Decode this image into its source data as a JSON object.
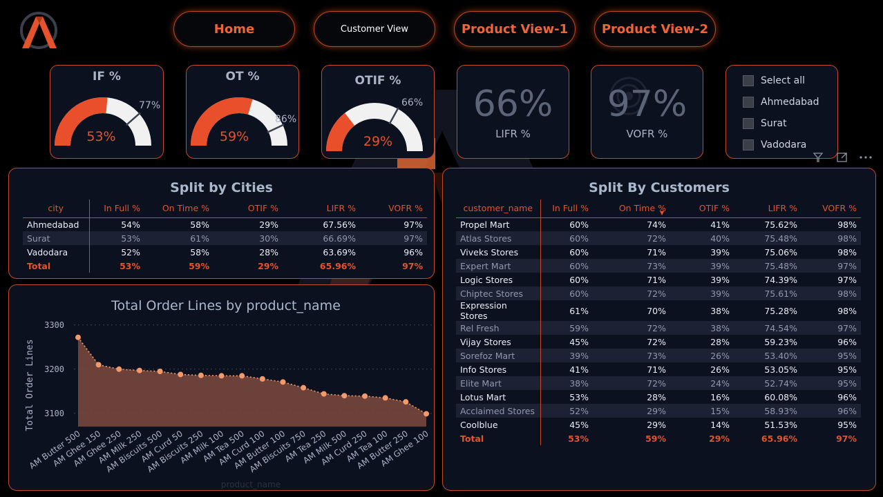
{
  "nav": {
    "home": "Home",
    "customer_view": "Customer View",
    "product_view_1": "Product View-1",
    "product_view_2": "Product View-2"
  },
  "gauges": [
    {
      "title": "IF %",
      "value": "53%",
      "target": "77%",
      "fraction": 0.53,
      "target_fraction": 0.77
    },
    {
      "title": "OT %",
      "value": "59%",
      "target": "86%",
      "fraction": 0.59,
      "target_fraction": 0.86
    },
    {
      "title": "OTIF %",
      "value": "29%",
      "target": "66%",
      "fraction": 0.29,
      "target_fraction": 0.66
    }
  ],
  "kpis": [
    {
      "value": "66%",
      "label": "LIFR %"
    },
    {
      "value": "97%",
      "label": "VOFR %"
    }
  ],
  "slicer": {
    "items": [
      "Select all",
      "Ahmedabad",
      "Surat",
      "Vadodara"
    ]
  },
  "cities_table": {
    "title": "Split by Cities",
    "headers": [
      "city",
      "In Full %",
      "On Time %",
      "OTIF %",
      "LIFR %",
      "VOFR %"
    ],
    "rows": [
      [
        "Ahmedabad",
        "54%",
        "58%",
        "29%",
        "67.56%",
        "97%"
      ],
      [
        "Surat",
        "53%",
        "61%",
        "30%",
        "66.69%",
        "97%"
      ],
      [
        "Vadodara",
        "52%",
        "58%",
        "28%",
        "63.69%",
        "96%"
      ]
    ],
    "total": [
      "Total",
      "53%",
      "59%",
      "29%",
      "65.96%",
      "97%"
    ]
  },
  "customers_table": {
    "title": "Split By Customers",
    "headers": [
      "customer_name",
      "In Full %",
      "On Time %",
      "OTIF %",
      "LIFR %",
      "VOFR %"
    ],
    "rows": [
      [
        "Propel Mart",
        "60%",
        "74%",
        "41%",
        "75.62%",
        "98%"
      ],
      [
        "Atlas Stores",
        "60%",
        "72%",
        "40%",
        "75.48%",
        "98%"
      ],
      [
        "Viveks Stores",
        "60%",
        "71%",
        "39%",
        "75.06%",
        "98%"
      ],
      [
        "Expert Mart",
        "60%",
        "73%",
        "39%",
        "75.48%",
        "97%"
      ],
      [
        "Logic Stores",
        "60%",
        "71%",
        "39%",
        "74.39%",
        "97%"
      ],
      [
        "Chiptec Stores",
        "60%",
        "72%",
        "39%",
        "75.61%",
        "98%"
      ],
      [
        "Expression Stores",
        "61%",
        "70%",
        "38%",
        "75.28%",
        "98%"
      ],
      [
        "Rel Fresh",
        "59%",
        "72%",
        "38%",
        "74.54%",
        "97%"
      ],
      [
        "Vijay Stores",
        "45%",
        "72%",
        "28%",
        "59.23%",
        "96%"
      ],
      [
        "Sorefoz Mart",
        "39%",
        "73%",
        "26%",
        "53.40%",
        "95%"
      ],
      [
        "Info Stores",
        "41%",
        "71%",
        "26%",
        "53.05%",
        "95%"
      ],
      [
        "Elite Mart",
        "38%",
        "72%",
        "24%",
        "52.74%",
        "95%"
      ],
      [
        "Lotus Mart",
        "53%",
        "28%",
        "16%",
        "60.08%",
        "96%"
      ],
      [
        "Acclaimed Stores",
        "52%",
        "29%",
        "15%",
        "58.93%",
        "96%"
      ],
      [
        "Coolblue",
        "45%",
        "29%",
        "14%",
        "51.53%",
        "95%"
      ]
    ],
    "total": [
      "Total",
      "53%",
      "59%",
      "29%",
      "65.96%",
      "97%"
    ]
  },
  "chart_data": {
    "type": "area",
    "title": "Total Order Lines by product_name",
    "xlabel": "product_name",
    "ylabel": "Total Order Lines",
    "ylim": [
      3070,
      3320
    ],
    "yticks": [
      3100,
      3200,
      3300
    ],
    "grid": true,
    "categories": [
      "AM Butter 500",
      "AM Ghee 150",
      "AM Ghee 250",
      "AM Milk 250",
      "AM Biscuits 500",
      "AM Curd 50",
      "AM Biscuits 250",
      "AM Milk 100",
      "AM Tea 500",
      "AM Curd 100",
      "AM Butter 100",
      "AM Biscuits 750",
      "AM Tea 250",
      "AM Milk 500",
      "AM Curd 250",
      "AM Tea 100",
      "AM Butter 250",
      "AM Ghee 100"
    ],
    "values": [
      3272,
      3210,
      3200,
      3197,
      3195,
      3188,
      3186,
      3185,
      3185,
      3178,
      3171,
      3158,
      3144,
      3140,
      3139,
      3135,
      3126,
      3099
    ],
    "colors": {
      "line": "#f29a6c",
      "fill": "#7d4a3e"
    }
  },
  "colors": {
    "accent": "#e4532c",
    "border": "#c64a22",
    "card_bg": "#0c1120"
  },
  "icons": {
    "filter": "filter-icon",
    "focus": "focus-mode-icon",
    "more": "more-options-icon"
  }
}
